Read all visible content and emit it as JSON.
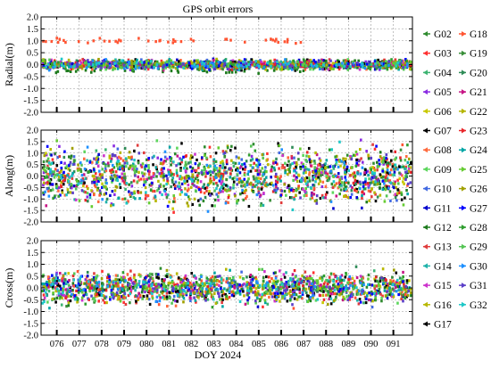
{
  "chart_data": {
    "type": "scatter",
    "title": "GPS orbit errors",
    "xlabel": "DOY 2024",
    "x_ticks": [
      "076",
      "077",
      "078",
      "079",
      "080",
      "081",
      "082",
      "083",
      "084",
      "085",
      "086",
      "087",
      "088",
      "089",
      "090",
      "091"
    ],
    "xlim": [
      75.3,
      91.85
    ],
    "grid": true,
    "legend_placement": "right",
    "y_ticks": [
      "2.0",
      "1.5",
      "1.0",
      "0.5",
      "0.0",
      "-0.5",
      "-1.0",
      "-1.5",
      "-2.0"
    ],
    "panels": [
      {
        "ylabel": "Radial(m)",
        "ylim": [
          -2.0,
          2.0
        ],
        "spread": 0.16,
        "offset_series": {
          "name": "G18",
          "level": 1.0,
          "until_doy": 87.2
        },
        "low_series": {
          "name": "G12",
          "level": -0.28,
          "until_doy": 87.2
        }
      },
      {
        "ylabel": "Along(m)",
        "ylim": [
          -2.0,
          2.0
        ],
        "spread": 1.0
      },
      {
        "ylabel": "Cross(m)",
        "ylim": [
          -2.0,
          2.0
        ],
        "spread": 0.55
      }
    ],
    "series": [
      {
        "name": "G02",
        "color": "#2e8b2e",
        "marker": "<"
      },
      {
        "name": "G03",
        "color": "#ff3030",
        "marker": "<"
      },
      {
        "name": "G04",
        "color": "#3cb371",
        "marker": "<"
      },
      {
        "name": "G05",
        "color": "#8a2be2",
        "marker": "<"
      },
      {
        "name": "G06",
        "color": "#c8c800",
        "marker": "<"
      },
      {
        "name": "G07",
        "color": "#000000",
        "marker": "<"
      },
      {
        "name": "G08",
        "color": "#ff6a3d",
        "marker": "<"
      },
      {
        "name": "G09",
        "color": "#5cd65c",
        "marker": "<"
      },
      {
        "name": "G10",
        "color": "#4169e1",
        "marker": "<"
      },
      {
        "name": "G11",
        "color": "#0000cd",
        "marker": "<"
      },
      {
        "name": "G12",
        "color": "#1e7b1e",
        "marker": "<"
      },
      {
        "name": "G13",
        "color": "#e03c3c",
        "marker": "<"
      },
      {
        "name": "G14",
        "color": "#20b2aa",
        "marker": "<"
      },
      {
        "name": "G15",
        "color": "#cc33cc",
        "marker": "<"
      },
      {
        "name": "G16",
        "color": "#b8b800",
        "marker": "<"
      },
      {
        "name": "G17",
        "color": "#000000",
        "marker": "<"
      },
      {
        "name": "G18",
        "color": "#ff5533",
        "marker": ">"
      },
      {
        "name": "G19",
        "color": "#3a8f3a",
        "marker": ">"
      },
      {
        "name": "G20",
        "color": "#2e8b57",
        "marker": ">"
      },
      {
        "name": "G21",
        "color": "#c71585",
        "marker": ">"
      },
      {
        "name": "G22",
        "color": "#b5b500",
        "marker": ">"
      },
      {
        "name": "G23",
        "color": "#e8262a",
        "marker": ">"
      },
      {
        "name": "G24",
        "color": "#00a5a5",
        "marker": ">"
      },
      {
        "name": "G25",
        "color": "#66cc33",
        "marker": ">"
      },
      {
        "name": "G26",
        "color": "#a0a000",
        "marker": ">"
      },
      {
        "name": "G27",
        "color": "#0000ff",
        "marker": ">"
      },
      {
        "name": "G28",
        "color": "#2f9e2f",
        "marker": ">"
      },
      {
        "name": "G29",
        "color": "#55c555",
        "marker": ">"
      },
      {
        "name": "G30",
        "color": "#1e90ff",
        "marker": ">"
      },
      {
        "name": "G31",
        "color": "#5b3fc8",
        "marker": ">"
      },
      {
        "name": "G32",
        "color": "#1ec8c8",
        "marker": ">"
      }
    ]
  }
}
